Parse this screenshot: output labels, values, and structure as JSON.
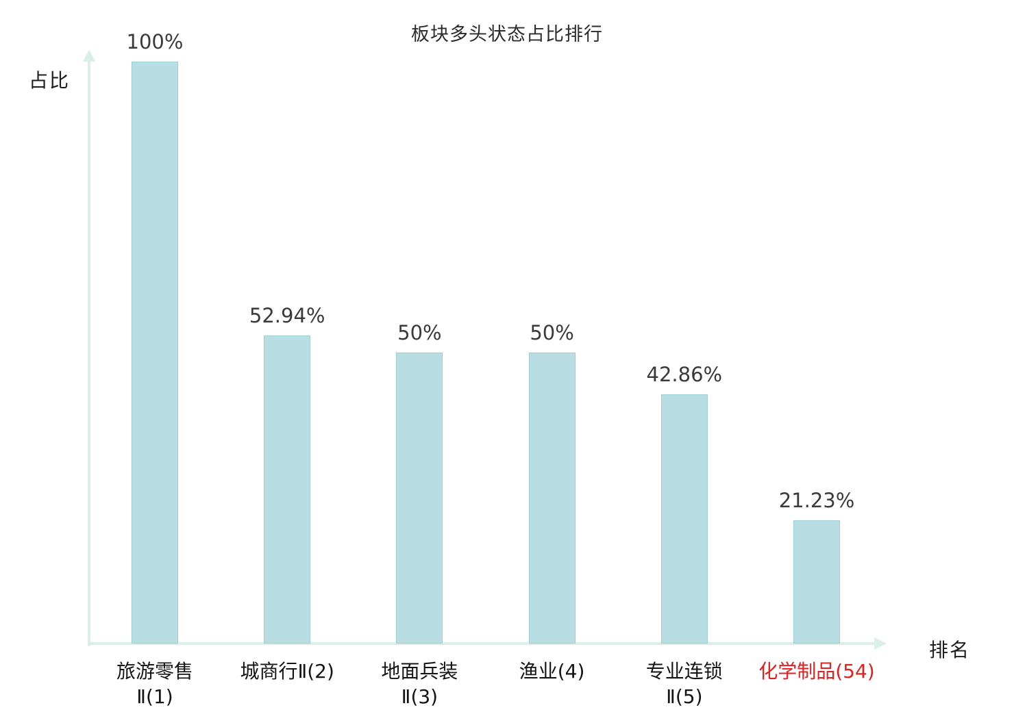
{
  "title": "板块多头状态占比排行",
  "y_axis": {
    "label": "占比"
  },
  "x_axis": {
    "label": "排名"
  },
  "chart_data": {
    "type": "bar",
    "title": "板块多头状态占比排行",
    "xlabel": "排名",
    "ylabel": "占比",
    "ylim": [
      0,
      100
    ],
    "grid": false,
    "legend": false,
    "categories": [
      "旅游零售Ⅱ(1)",
      "城商行Ⅱ(2)",
      "地面兵装Ⅱ(3)",
      "渔业(4)",
      "专业连锁Ⅱ(5)",
      "化学制品(54)"
    ],
    "category_lines": [
      [
        "旅游零售",
        "Ⅱ(1)"
      ],
      [
        "城商行Ⅱ(2)"
      ],
      [
        "地面兵装",
        "Ⅱ(3)"
      ],
      [
        "渔业(4)"
      ],
      [
        "专业连锁",
        "Ⅱ(5)"
      ],
      [
        "化学制品(54)"
      ]
    ],
    "values": [
      100,
      52.94,
      50,
      50,
      42.86,
      21.23
    ],
    "value_labels": [
      "100%",
      "52.94%",
      "50%",
      "50%",
      "42.86%",
      "21.23%"
    ],
    "highlight_index": 5,
    "colors": {
      "bar_fill": "#b8dee3",
      "bar_border": "#9dced6",
      "axis": "#d9efe8",
      "text": "#141414",
      "value_text": "#3a3a3a",
      "highlight_text": "#e01f1f"
    }
  }
}
